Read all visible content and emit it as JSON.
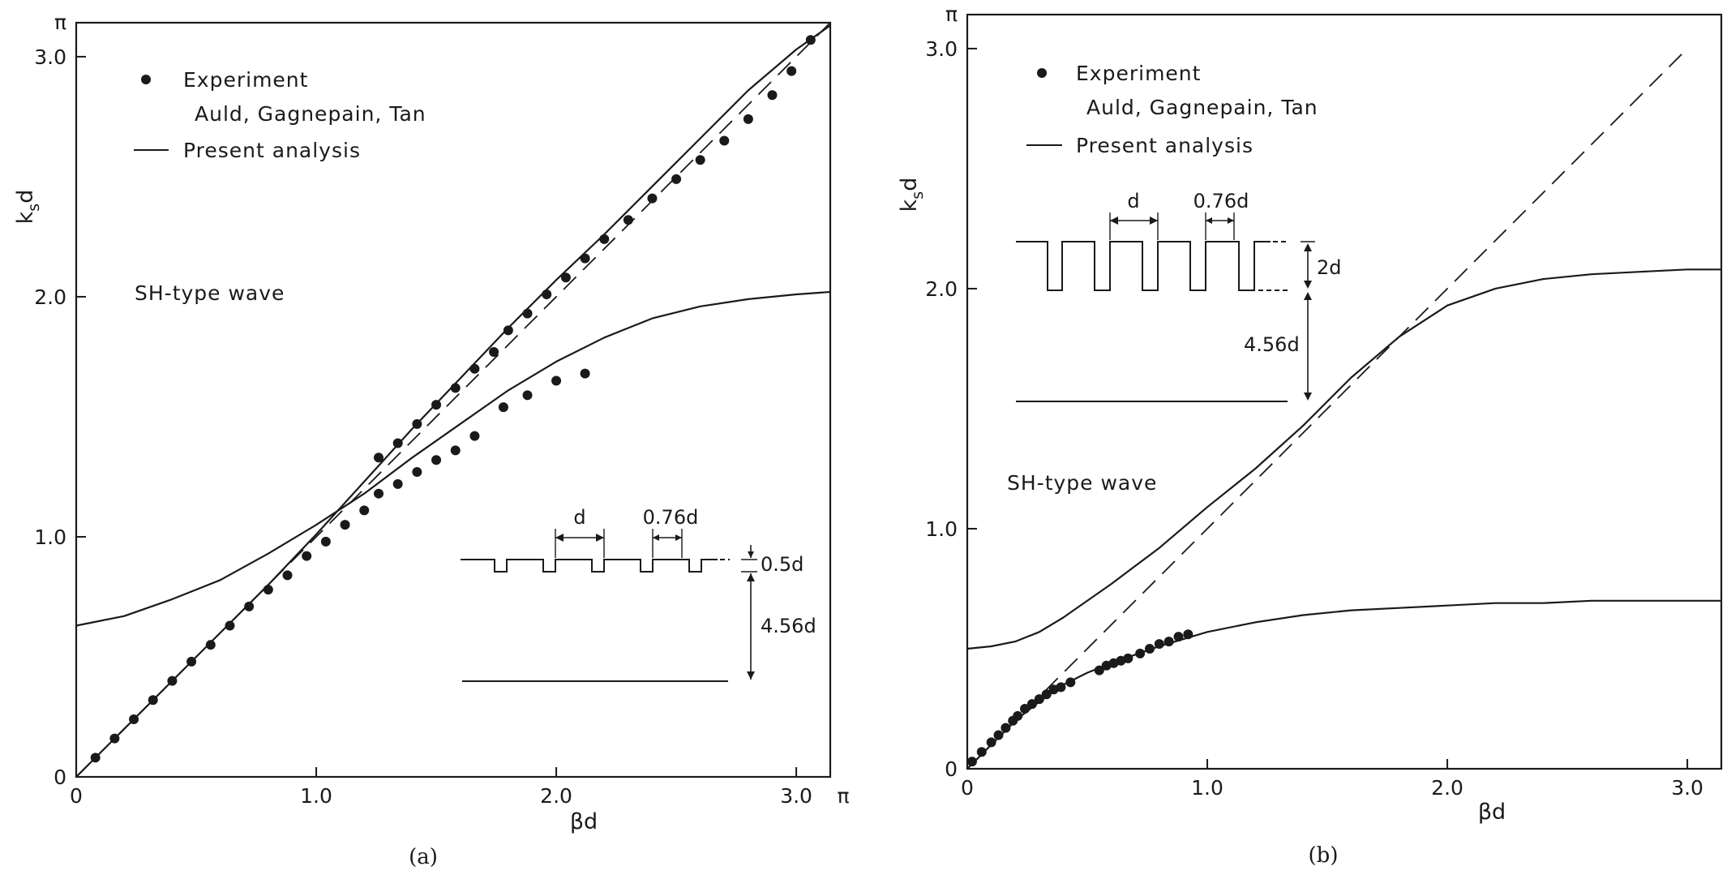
{
  "chart_data": [
    {
      "type": "scatter",
      "caption": "(a)",
      "xlabel": "βd",
      "ylabel": "ksd",
      "ylabel_main": "k",
      "ylabel_sub": "s",
      "ylabel_tail": "d",
      "xlim": [
        0,
        3.1416
      ],
      "ylim": [
        0,
        3.1416
      ],
      "x_ticks": [
        "0",
        "1.0",
        "2.0",
        "3.0"
      ],
      "y_ticks": [
        "0",
        "1.0",
        "2.0",
        "3.0"
      ],
      "pi_label": "π",
      "legend": {
        "experiment": "Experiment",
        "experiment_source": "Auld, Gagnepain, Tan",
        "analysis": "Present analysis"
      },
      "annotation": "SH-type wave",
      "inset": {
        "period": "d",
        "width": "0.76d",
        "depth": "0.5d",
        "thickness": "4.56d"
      },
      "series": [
        {
          "name": "Present analysis (upper branch)",
          "style": "solid",
          "x": [
            0,
            0.2,
            0.4,
            0.6,
            0.8,
            1.0,
            1.2,
            1.4,
            1.6,
            1.8,
            2.0,
            2.2,
            2.4,
            2.6,
            2.8,
            3.0,
            3.1416
          ],
          "y": [
            0,
            0.2,
            0.4,
            0.6,
            0.8,
            1.01,
            1.23,
            1.45,
            1.66,
            1.87,
            2.07,
            2.26,
            2.46,
            2.66,
            2.86,
            3.03,
            3.13
          ]
        },
        {
          "name": "Present analysis (lower branch)",
          "style": "solid",
          "x": [
            0,
            0.2,
            0.4,
            0.6,
            0.8,
            1.0,
            1.2,
            1.4,
            1.6,
            1.8,
            2.0,
            2.2,
            2.4,
            2.6,
            2.8,
            3.0,
            3.1416
          ],
          "y": [
            0.63,
            0.67,
            0.74,
            0.82,
            0.93,
            1.05,
            1.18,
            1.33,
            1.47,
            1.61,
            1.73,
            1.83,
            1.91,
            1.96,
            1.99,
            2.01,
            2.02
          ]
        },
        {
          "name": "Light line",
          "style": "dashed",
          "x": [
            0,
            3.1416
          ],
          "y": [
            0,
            3.1416
          ]
        },
        {
          "name": "Experiment (upper branch)",
          "style": "dots",
          "x": [
            0.08,
            0.16,
            0.24,
            0.32,
            0.4,
            0.48,
            0.56,
            0.64,
            0.72,
            0.8,
            0.88,
            0.96,
            1.04,
            1.12,
            1.2,
            1.26,
            1.34,
            1.42,
            1.5,
            1.58,
            1.66,
            1.74,
            1.8,
            1.88,
            1.96,
            2.04,
            2.12,
            2.2,
            2.3,
            2.4,
            2.5,
            2.6,
            2.7,
            2.8,
            2.9,
            2.98,
            3.06
          ],
          "y": [
            0.08,
            0.16,
            0.24,
            0.32,
            0.4,
            0.48,
            0.55,
            0.63,
            0.71,
            0.78,
            0.84,
            0.92,
            0.98,
            1.05,
            1.11,
            1.33,
            1.39,
            1.47,
            1.55,
            1.62,
            1.7,
            1.77,
            1.86,
            1.93,
            2.01,
            2.08,
            2.16,
            2.24,
            2.32,
            2.41,
            2.49,
            2.57,
            2.65,
            2.74,
            2.84,
            2.94,
            3.07
          ]
        },
        {
          "name": "Experiment (lower branch)",
          "style": "dots",
          "x": [
            1.26,
            1.34,
            1.42,
            1.5,
            1.58,
            1.66,
            1.78,
            1.88,
            2.0,
            2.12
          ],
          "y": [
            1.18,
            1.22,
            1.27,
            1.32,
            1.36,
            1.42,
            1.54,
            1.59,
            1.65,
            1.68
          ]
        }
      ]
    },
    {
      "type": "scatter",
      "caption": "(b)",
      "xlabel": "βd",
      "ylabel": "ksd",
      "ylabel_main": "k",
      "ylabel_sub": "s",
      "ylabel_tail": "d",
      "xlim": [
        0,
        3.1416
      ],
      "ylim": [
        0,
        3.1416
      ],
      "x_ticks": [
        "0",
        "1.0",
        "2.0",
        "3.0"
      ],
      "y_ticks": [
        "0",
        "1.0",
        "2.0",
        "3.0"
      ],
      "pi_label": "π",
      "legend": {
        "experiment": "Experiment",
        "experiment_source": "Auld, Gagnepain, Tan",
        "analysis": "Present analysis"
      },
      "annotation": "SH-type wave",
      "inset": {
        "period": "d",
        "width": "0.76d",
        "depth": "2d",
        "thickness": "4.56d"
      },
      "series": [
        {
          "name": "Present analysis (upper branch)",
          "style": "solid",
          "x": [
            0,
            0.1,
            0.2,
            0.3,
            0.4,
            0.6,
            0.8,
            1.0,
            1.2,
            1.4,
            1.6,
            1.8,
            2.0,
            2.2,
            2.4,
            2.6,
            2.8,
            3.0,
            3.1416
          ],
          "y": [
            0.5,
            0.51,
            0.53,
            0.57,
            0.63,
            0.77,
            0.92,
            1.09,
            1.25,
            1.43,
            1.63,
            1.8,
            1.93,
            2.0,
            2.04,
            2.06,
            2.07,
            2.08,
            2.08
          ]
        },
        {
          "name": "Present analysis (lower branch)",
          "style": "solid",
          "x": [
            0,
            0.1,
            0.2,
            0.3,
            0.4,
            0.5,
            0.6,
            0.8,
            1.0,
            1.2,
            1.4,
            1.6,
            1.8,
            2.0,
            2.2,
            2.4,
            2.6,
            2.8,
            3.0,
            3.1416
          ],
          "y": [
            0,
            0.1,
            0.2,
            0.28,
            0.35,
            0.4,
            0.44,
            0.51,
            0.57,
            0.61,
            0.64,
            0.66,
            0.67,
            0.68,
            0.69,
            0.69,
            0.7,
            0.7,
            0.7,
            0.7
          ]
        },
        {
          "name": "Light line",
          "style": "dashed",
          "x": [
            0,
            3.0
          ],
          "y": [
            0,
            3.0
          ]
        },
        {
          "name": "Experiment",
          "style": "dots",
          "x": [
            0.02,
            0.06,
            0.1,
            0.13,
            0.16,
            0.19,
            0.21,
            0.24,
            0.27,
            0.3,
            0.33,
            0.36,
            0.39,
            0.43,
            0.55,
            0.58,
            0.61,
            0.64,
            0.67,
            0.72,
            0.76,
            0.8,
            0.84,
            0.88,
            0.92
          ],
          "y": [
            0.03,
            0.07,
            0.11,
            0.14,
            0.17,
            0.2,
            0.22,
            0.25,
            0.27,
            0.29,
            0.31,
            0.33,
            0.34,
            0.36,
            0.41,
            0.43,
            0.44,
            0.45,
            0.46,
            0.48,
            0.5,
            0.52,
            0.53,
            0.55,
            0.56
          ]
        }
      ]
    }
  ]
}
